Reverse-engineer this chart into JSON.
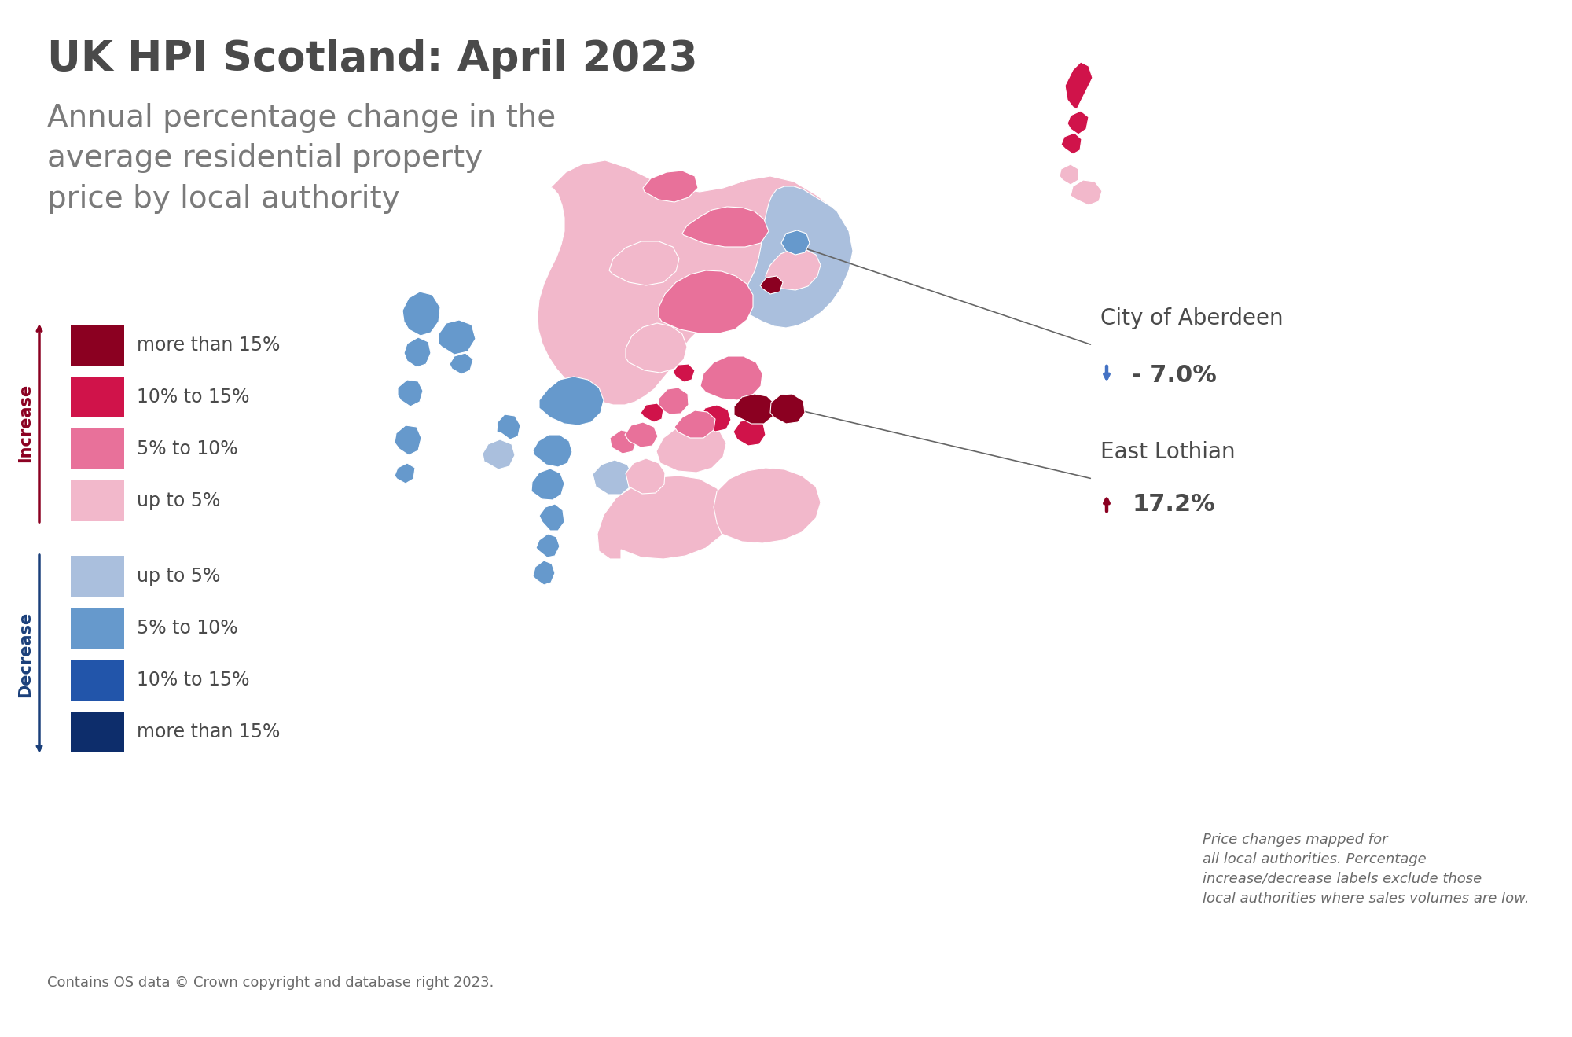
{
  "title": "UK HPI Scotland: April 2023",
  "subtitle": "Annual percentage change in the\naverage residential property\nprice by local authority",
  "title_color": "#4a4a4a",
  "title_fontsize": 38,
  "subtitle_fontsize": 28,
  "background_color": "#ffffff",
  "pink_light": "#F2B8CB",
  "pink_mid": "#E8719A",
  "pink_dark": "#D0134A",
  "dark_red": "#8B0021",
  "blue_light": "#AABFDD",
  "blue_mid": "#6699CC",
  "blue_dark": "#2255AA",
  "dark_blue": "#0D2D6B",
  "legend_increase_colors": [
    "#8B0021",
    "#D0134A",
    "#E8719A",
    "#F2B8CB"
  ],
  "legend_decrease_colors": [
    "#AABFDD",
    "#6699CC",
    "#2255AA",
    "#0D2D6B"
  ],
  "legend_increase_labels": [
    "more than 15%",
    "10% to 15%",
    "5% to 10%",
    "up to 5%"
  ],
  "legend_decrease_labels": [
    "up to 5%",
    "5% to 10%",
    "10% to 15%",
    "more than 15%"
  ],
  "increase_label": "Increase",
  "decrease_label": "Decrease",
  "increase_color": "#8B0021",
  "decrease_color": "#1A3F7A",
  "annotation1_name": "City of Aberdeen",
  "annotation1_value": "- 7.0%",
  "annotation1_color": "#4472C4",
  "annotation2_name": "East Lothian",
  "annotation2_value": "17.2%",
  "annotation2_color": "#8B0021",
  "footnote1": "Contains OS data © Crown copyright and database right 2023.",
  "footnote2": "Price changes mapped for\nall local authorities. Percentage\nincrease/decrease labels exclude those\nlocal authorities where sales volumes are low.",
  "footnote_fontsize": 13,
  "label_fontsize": 17,
  "value_fontsize": 22,
  "annot_name_fontsize": 20
}
